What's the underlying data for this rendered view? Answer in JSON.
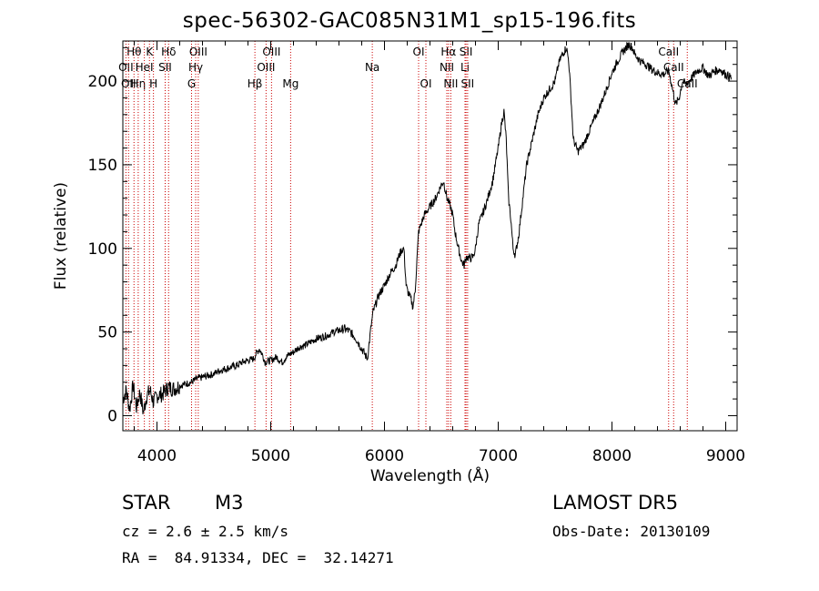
{
  "title": "spec-56302-GAC085N31M1_sp15-196.fits",
  "chart_data": {
    "type": "line",
    "xlabel": "Wavelength (Å)",
    "ylabel": "Flux (relative)",
    "xlim": [
      3700,
      9100
    ],
    "ylim": [
      -9,
      224
    ],
    "xticks": [
      4000,
      5000,
      6000,
      7000,
      8000,
      9000
    ],
    "yticks": [
      0,
      50,
      100,
      150,
      200
    ],
    "grid": false,
    "line_color": "#000000",
    "marker_color": "#cc0000",
    "series": [
      {
        "x": [
          3700,
          3730,
          3760,
          3790,
          3820,
          3850,
          3880,
          3910,
          3940,
          3970,
          4000,
          4050,
          4100,
          4150,
          4200,
          4250,
          4300,
          4350,
          4400,
          4450,
          4500,
          4550,
          4600,
          4650,
          4700,
          4750,
          4800,
          4850,
          4880,
          4900,
          4930,
          4950,
          5000,
          5050,
          5100,
          5150,
          5200,
          5250,
          5300,
          5350,
          5400,
          5450,
          5500,
          5550,
          5600,
          5650,
          5700,
          5750,
          5800,
          5850,
          5880,
          5900,
          5950,
          6000,
          6050,
          6100,
          6130,
          6150,
          6170,
          6190,
          6200,
          6230,
          6250,
          6270,
          6300,
          6350,
          6400,
          6450,
          6500,
          6520,
          6550,
          6580,
          6600,
          6620,
          6650,
          6680,
          6700,
          6720,
          6750,
          6780,
          6800,
          6830,
          6860,
          6900,
          6950,
          7000,
          7030,
          7050,
          7070,
          7090,
          7110,
          7130,
          7150,
          7180,
          7200,
          7250,
          7300,
          7350,
          7400,
          7450,
          7500,
          7530,
          7550,
          7580,
          7600,
          7620,
          7640,
          7660,
          7700,
          7750,
          7800,
          7850,
          7900,
          7950,
          8000,
          8050,
          8100,
          8150,
          8180,
          8200,
          8250,
          8300,
          8350,
          8400,
          8450,
          8500,
          8530,
          8560,
          8590,
          8620,
          8650,
          8700,
          8750,
          8800,
          8850,
          8900,
          8950,
          9000,
          9050
        ],
        "y": [
          10,
          15,
          4,
          18,
          5,
          14,
          2,
          12,
          15,
          8,
          12,
          13,
          17,
          16,
          18,
          19,
          20,
          22,
          23,
          24,
          25,
          27,
          28,
          29,
          30,
          32,
          33,
          34,
          38,
          40,
          36,
          32,
          33,
          35,
          32,
          36,
          38,
          41,
          42,
          44,
          46,
          47,
          48,
          50,
          51,
          52,
          50,
          46,
          40,
          34,
          52,
          62,
          72,
          78,
          85,
          90,
          96,
          99,
          100,
          78,
          75,
          70,
          65,
          75,
          110,
          120,
          125,
          130,
          138,
          140,
          130,
          125,
          120,
          110,
          100,
          92,
          90,
          95,
          94,
          95,
          100,
          115,
          120,
          128,
          140,
          160,
          175,
          182,
          165,
          130,
          118,
          100,
          96,
          108,
          120,
          150,
          165,
          180,
          190,
          195,
          200,
          210,
          214,
          218,
          220,
          212,
          190,
          165,
          158,
          162,
          170,
          178,
          186,
          195,
          205,
          212,
          218,
          222,
          220,
          216,
          212,
          210,
          207,
          205,
          204,
          206,
          196,
          186,
          190,
          200,
          198,
          202,
          206,
          208,
          203,
          206,
          207,
          204,
          202
        ]
      }
    ],
    "line_markers": [
      {
        "wavelength": 3798,
        "label": "Hθ",
        "row": 0
      },
      {
        "wavelength": 3835,
        "label": "Hη",
        "row": 2
      },
      {
        "wavelength": 3889,
        "label": "HeI",
        "row": 1
      },
      {
        "wavelength": 3934,
        "label": "K",
        "row": 0
      },
      {
        "wavelength": 3969,
        "label": "H",
        "row": 2
      },
      {
        "wavelength": 4072,
        "label": "SII",
        "row": 1
      },
      {
        "wavelength": 4102,
        "label": "Hδ",
        "row": 0
      },
      {
        "wavelength": 4304,
        "label": "G",
        "row": 2
      },
      {
        "wavelength": 4340,
        "label": "Hγ",
        "row": 1
      },
      {
        "wavelength": 4363,
        "label": "OIII",
        "row": 0
      },
      {
        "wavelength": 4861,
        "label": "Hβ",
        "row": 2
      },
      {
        "wavelength": 4959,
        "label": "OIII",
        "row": 1
      },
      {
        "wavelength": 5007,
        "label": "OIII",
        "row": 0
      },
      {
        "wavelength": 5175,
        "label": "Mg",
        "row": 2
      },
      {
        "wavelength": 5893,
        "label": "Na",
        "row": 1
      },
      {
        "wavelength": 6300,
        "label": "OI",
        "row": 0
      },
      {
        "wavelength": 6364,
        "label": "OI",
        "row": 2
      },
      {
        "wavelength": 6548,
        "label": "NII",
        "row": 1
      },
      {
        "wavelength": 6563,
        "label": "Hα",
        "row": 0
      },
      {
        "wavelength": 6583,
        "label": "NII",
        "row": 2
      },
      {
        "wavelength": 6708,
        "label": "Li",
        "row": 1
      },
      {
        "wavelength": 6717,
        "label": "SII",
        "row": 0
      },
      {
        "wavelength": 6731,
        "label": "SII",
        "row": 2
      },
      {
        "wavelength": 8498,
        "label": "CaII",
        "row": 0
      },
      {
        "wavelength": 8542,
        "label": "CaII",
        "row": 1
      },
      {
        "wavelength": 8662,
        "label": "CaII",
        "row": 2
      },
      {
        "wavelength": 3727,
        "label": "OII",
        "row": 1
      },
      {
        "wavelength": 3750,
        "label": "OII",
        "row": 2
      }
    ]
  },
  "info": {
    "obj_class": "STAR",
    "obj_subclass": "M3",
    "survey": "LAMOST DR5",
    "cz": "cz = 2.6 ± 2.5 km/s",
    "obs_date": "Obs-Date: 20130109",
    "radec": "RA =  84.91334, DEC =  32.14271"
  }
}
